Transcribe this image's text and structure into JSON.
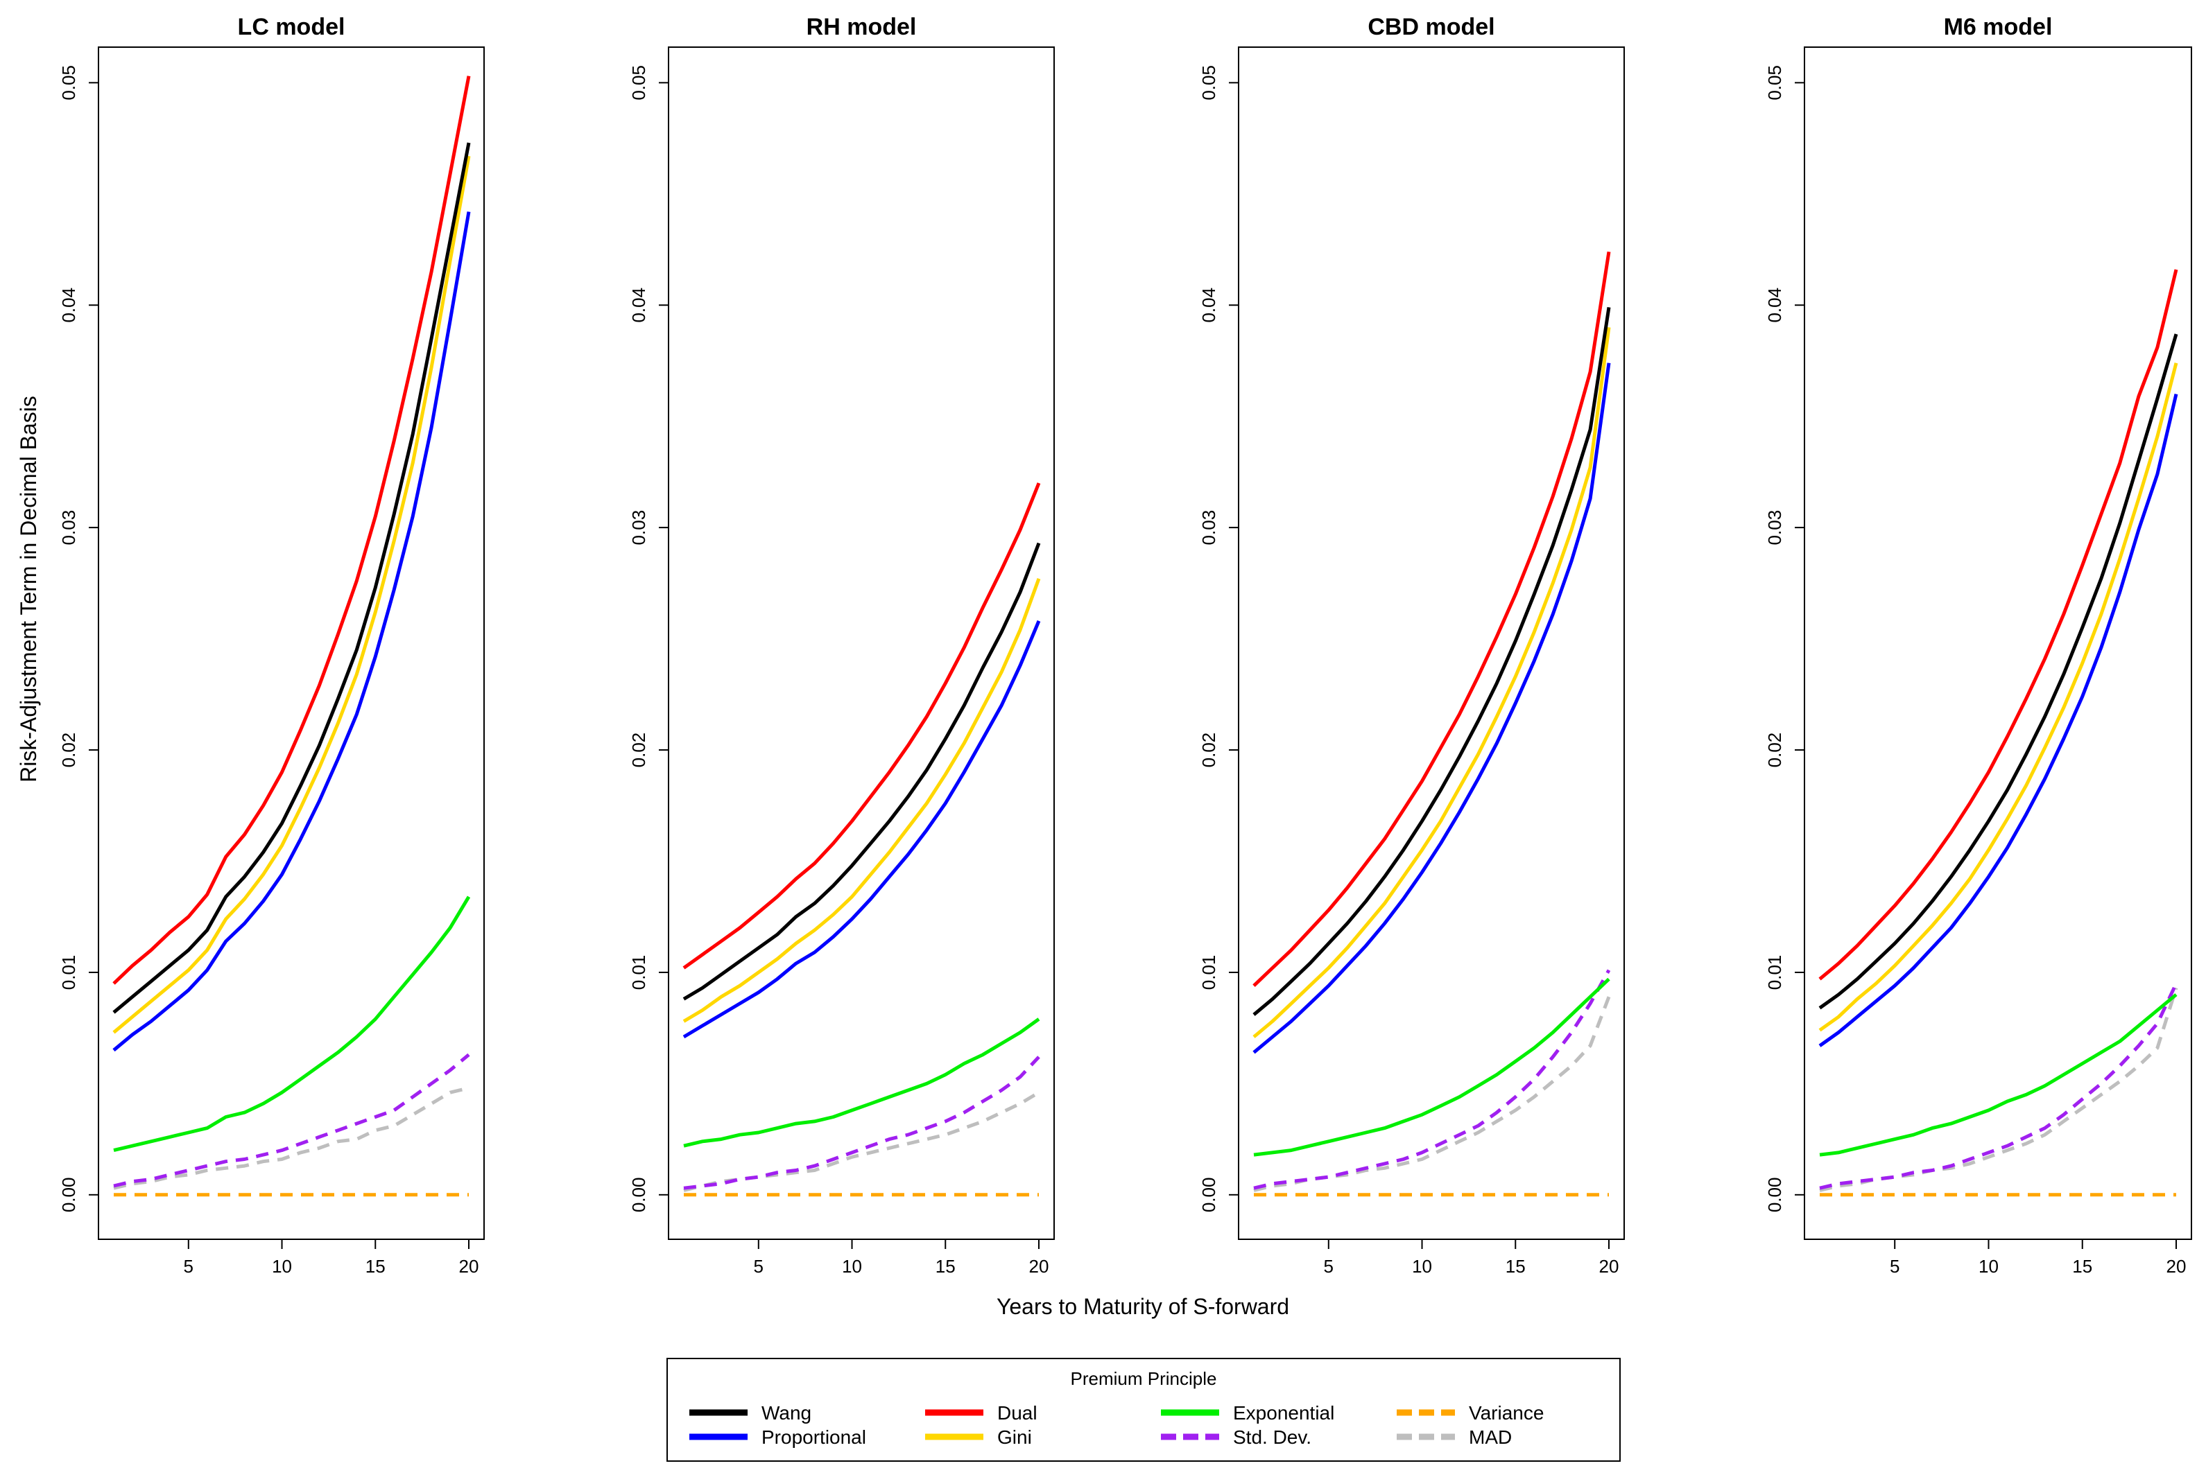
{
  "chart_data": {
    "type": "line",
    "ylabel": "Risk-Adjustment Term in Decimal Basis",
    "xlabel": "Years to Maturity of S-forward",
    "xlim": [
      1,
      20
    ],
    "ylim": [
      -0.002,
      0.0516
    ],
    "xticks": [
      5,
      10,
      15,
      20
    ],
    "yticks": [
      0.0,
      0.01,
      0.02,
      0.03,
      0.04,
      0.05
    ],
    "ytick_labels": [
      "0.00",
      "0.01",
      "0.02",
      "0.03",
      "0.04",
      "0.05"
    ],
    "x": [
      1,
      2,
      3,
      4,
      5,
      6,
      7,
      8,
      9,
      10,
      11,
      12,
      13,
      14,
      15,
      16,
      17,
      18,
      19,
      20
    ],
    "legend": {
      "title": "Premium Principle",
      "placement": "bottom-center",
      "entries": [
        {
          "name": "Wang",
          "color": "#000000",
          "dashed": false
        },
        {
          "name": "Proportional",
          "color": "#0000FF",
          "dashed": false
        },
        {
          "name": "Dual",
          "color": "#FF0000",
          "dashed": false
        },
        {
          "name": "Gini",
          "color": "#FFD700",
          "dashed": false
        },
        {
          "name": "Exponential",
          "color": "#00EE00",
          "dashed": false
        },
        {
          "name": "Std. Dev.",
          "color": "#A020F0",
          "dashed": true
        },
        {
          "name": "Variance",
          "color": "#FFA500",
          "dashed": true
        },
        {
          "name": "MAD",
          "color": "#BEBEBE",
          "dashed": true
        }
      ]
    },
    "panels": [
      {
        "title": "LC model",
        "series": [
          {
            "name": "MAD",
            "values": [
              0.0003,
              0.0005,
              0.0006,
              0.0008,
              0.0009,
              0.0011,
              0.0012,
              0.0013,
              0.0015,
              0.0016,
              0.0019,
              0.0021,
              0.0024,
              0.0025,
              0.0029,
              0.0031,
              0.0036,
              0.0041,
              0.0046,
              0.0048
            ]
          },
          {
            "name": "Std. Dev.",
            "values": [
              0.0004,
              0.0006,
              0.0007,
              0.0009,
              0.0011,
              0.0013,
              0.0015,
              0.0016,
              0.0018,
              0.002,
              0.0023,
              0.0026,
              0.0029,
              0.0032,
              0.0035,
              0.0038,
              0.0044,
              0.005,
              0.0056,
              0.0063
            ]
          },
          {
            "name": "Variance",
            "values": [
              0.0,
              0.0,
              0.0,
              0.0,
              0.0,
              0.0,
              0.0,
              0.0,
              0.0,
              0.0,
              0.0,
              0.0,
              0.0,
              0.0,
              0.0,
              0.0,
              0.0,
              0.0,
              0.0,
              0.0
            ]
          },
          {
            "name": "Exponential",
            "values": [
              0.002,
              0.0022,
              0.0024,
              0.0026,
              0.0028,
              0.003,
              0.0035,
              0.0037,
              0.0041,
              0.0046,
              0.0052,
              0.0058,
              0.0064,
              0.0071,
              0.0079,
              0.0089,
              0.0099,
              0.0109,
              0.012,
              0.0134
            ]
          },
          {
            "name": "Proportional",
            "values": [
              0.0065,
              0.0072,
              0.0078,
              0.0085,
              0.0092,
              0.0101,
              0.0114,
              0.0122,
              0.0132,
              0.0144,
              0.016,
              0.0177,
              0.0196,
              0.0216,
              0.0242,
              0.0272,
              0.0305,
              0.0345,
              0.0393,
              0.0442
            ]
          },
          {
            "name": "Gini",
            "values": [
              0.0073,
              0.008,
              0.0087,
              0.0094,
              0.0101,
              0.011,
              0.0124,
              0.0133,
              0.0144,
              0.0157,
              0.0174,
              0.0192,
              0.0212,
              0.0234,
              0.0262,
              0.0294,
              0.0329,
              0.0372,
              0.042,
              0.0467
            ]
          },
          {
            "name": "Wang",
            "values": [
              0.0082,
              0.0089,
              0.0096,
              0.0103,
              0.011,
              0.0119,
              0.0134,
              0.0143,
              0.0154,
              0.0167,
              0.0184,
              0.0202,
              0.0223,
              0.0245,
              0.0273,
              0.0306,
              0.0342,
              0.0385,
              0.0429,
              0.0473
            ]
          },
          {
            "name": "Dual",
            "values": [
              0.0095,
              0.0103,
              0.011,
              0.0118,
              0.0125,
              0.0135,
              0.0152,
              0.0162,
              0.0175,
              0.019,
              0.0209,
              0.0229,
              0.0252,
              0.0276,
              0.0305,
              0.0339,
              0.0376,
              0.0415,
              0.0459,
              0.0503
            ]
          }
        ]
      },
      {
        "title": "RH model",
        "series": [
          {
            "name": "MAD",
            "values": [
              0.0002,
              0.0004,
              0.0006,
              0.0007,
              0.0008,
              0.0009,
              0.001,
              0.0011,
              0.0014,
              0.0017,
              0.0019,
              0.0021,
              0.0023,
              0.0025,
              0.0027,
              0.003,
              0.0033,
              0.0037,
              0.0041,
              0.0046
            ]
          },
          {
            "name": "Std. Dev.",
            "values": [
              0.0003,
              0.0004,
              0.0005,
              0.0007,
              0.0008,
              0.001,
              0.0011,
              0.0013,
              0.0016,
              0.0019,
              0.0022,
              0.0025,
              0.0027,
              0.003,
              0.0033,
              0.0037,
              0.0042,
              0.0047,
              0.0053,
              0.0062
            ]
          },
          {
            "name": "Variance",
            "values": [
              0.0,
              0.0,
              0.0,
              0.0,
              0.0,
              0.0,
              0.0,
              0.0,
              0.0,
              0.0,
              0.0,
              0.0,
              0.0,
              0.0,
              0.0,
              0.0,
              0.0,
              0.0,
              0.0,
              0.0
            ]
          },
          {
            "name": "Exponential",
            "values": [
              0.0022,
              0.0024,
              0.0025,
              0.0027,
              0.0028,
              0.003,
              0.0032,
              0.0033,
              0.0035,
              0.0038,
              0.0041,
              0.0044,
              0.0047,
              0.005,
              0.0054,
              0.0059,
              0.0063,
              0.0068,
              0.0073,
              0.0079
            ]
          },
          {
            "name": "Proportional",
            "values": [
              0.0071,
              0.0076,
              0.0081,
              0.0086,
              0.0091,
              0.0097,
              0.0104,
              0.0109,
              0.0116,
              0.0124,
              0.0133,
              0.0143,
              0.0153,
              0.0164,
              0.0176,
              0.019,
              0.0205,
              0.022,
              0.0238,
              0.0258
            ]
          },
          {
            "name": "Gini",
            "values": [
              0.0078,
              0.0083,
              0.0089,
              0.0094,
              0.01,
              0.0106,
              0.0113,
              0.0119,
              0.0126,
              0.0134,
              0.0144,
              0.0154,
              0.0165,
              0.0176,
              0.0189,
              0.0203,
              0.0219,
              0.0235,
              0.0254,
              0.0277
            ]
          },
          {
            "name": "Wang",
            "values": [
              0.0088,
              0.0093,
              0.0099,
              0.0105,
              0.0111,
              0.0117,
              0.0125,
              0.0131,
              0.0139,
              0.0148,
              0.0158,
              0.0168,
              0.0179,
              0.0191,
              0.0205,
              0.022,
              0.0237,
              0.0253,
              0.0271,
              0.0293
            ]
          },
          {
            "name": "Dual",
            "values": [
              0.0102,
              0.0108,
              0.0114,
              0.012,
              0.0127,
              0.0134,
              0.0142,
              0.0149,
              0.0158,
              0.0168,
              0.0179,
              0.019,
              0.0202,
              0.0215,
              0.023,
              0.0246,
              0.0264,
              0.0281,
              0.0299,
              0.032
            ]
          }
        ]
      },
      {
        "title": "CBD model",
        "series": [
          {
            "name": "MAD",
            "values": [
              0.0002,
              0.0004,
              0.0005,
              0.0007,
              0.0008,
              0.0009,
              0.0011,
              0.0012,
              0.0014,
              0.0016,
              0.002,
              0.0024,
              0.0028,
              0.0033,
              0.0038,
              0.0044,
              0.0051,
              0.0058,
              0.0067,
              0.0089
            ]
          },
          {
            "name": "Std. Dev.",
            "values": [
              0.0003,
              0.0005,
              0.0006,
              0.0007,
              0.0008,
              0.001,
              0.0012,
              0.0014,
              0.0016,
              0.0019,
              0.0023,
              0.0027,
              0.0031,
              0.0037,
              0.0044,
              0.0052,
              0.0062,
              0.0073,
              0.0086,
              0.0101
            ]
          },
          {
            "name": "Variance",
            "values": [
              0.0,
              0.0,
              0.0,
              0.0,
              0.0,
              0.0,
              0.0,
              0.0,
              0.0,
              0.0,
              0.0,
              0.0,
              0.0,
              0.0,
              0.0,
              0.0,
              0.0,
              0.0,
              0.0,
              0.0
            ]
          },
          {
            "name": "Exponential",
            "values": [
              0.0018,
              0.0019,
              0.002,
              0.0022,
              0.0024,
              0.0026,
              0.0028,
              0.003,
              0.0033,
              0.0036,
              0.004,
              0.0044,
              0.0049,
              0.0054,
              0.006,
              0.0066,
              0.0073,
              0.0081,
              0.0089,
              0.0097
            ]
          },
          {
            "name": "Proportional",
            "values": [
              0.0064,
              0.0071,
              0.0078,
              0.0086,
              0.0094,
              0.0103,
              0.0112,
              0.0122,
              0.0133,
              0.0145,
              0.0158,
              0.0172,
              0.0187,
              0.0203,
              0.0221,
              0.024,
              0.0261,
              0.0285,
              0.0313,
              0.0374
            ]
          },
          {
            "name": "Gini",
            "values": [
              0.0071,
              0.0078,
              0.0086,
              0.0094,
              0.0102,
              0.0111,
              0.0121,
              0.0131,
              0.0143,
              0.0155,
              0.0168,
              0.0183,
              0.0198,
              0.0215,
              0.0233,
              0.0253,
              0.0275,
              0.0299,
              0.0327,
              0.039
            ]
          },
          {
            "name": "Wang",
            "values": [
              0.0081,
              0.0088,
              0.0096,
              0.0104,
              0.0113,
              0.0122,
              0.0132,
              0.0143,
              0.0155,
              0.0168,
              0.0182,
              0.0197,
              0.0213,
              0.023,
              0.0249,
              0.027,
              0.0292,
              0.0317,
              0.0344,
              0.0399
            ]
          },
          {
            "name": "Dual",
            "values": [
              0.0094,
              0.0102,
              0.011,
              0.0119,
              0.0128,
              0.0138,
              0.0149,
              0.016,
              0.0173,
              0.0186,
              0.0201,
              0.0216,
              0.0233,
              0.0251,
              0.027,
              0.0291,
              0.0314,
              0.034,
              0.037,
              0.0424
            ]
          }
        ]
      },
      {
        "title": "M6 model",
        "series": [
          {
            "name": "MAD",
            "values": [
              0.0002,
              0.0004,
              0.0005,
              0.0007,
              0.0008,
              0.0009,
              0.0011,
              0.0012,
              0.0014,
              0.0017,
              0.002,
              0.0023,
              0.0027,
              0.0033,
              0.0039,
              0.0045,
              0.0051,
              0.0058,
              0.0066,
              0.0093
            ]
          },
          {
            "name": "Std. Dev.",
            "values": [
              0.0003,
              0.0005,
              0.0006,
              0.0007,
              0.0008,
              0.001,
              0.0011,
              0.0013,
              0.0016,
              0.0019,
              0.0022,
              0.0026,
              0.003,
              0.0036,
              0.0043,
              0.005,
              0.0058,
              0.0067,
              0.0077,
              0.0095
            ]
          },
          {
            "name": "Variance",
            "values": [
              0.0,
              0.0,
              0.0,
              0.0,
              0.0,
              0.0,
              0.0,
              0.0,
              0.0,
              0.0,
              0.0,
              0.0,
              0.0,
              0.0,
              0.0,
              0.0,
              0.0,
              0.0,
              0.0,
              0.0
            ]
          },
          {
            "name": "Exponential",
            "values": [
              0.0018,
              0.0019,
              0.0021,
              0.0023,
              0.0025,
              0.0027,
              0.003,
              0.0032,
              0.0035,
              0.0038,
              0.0042,
              0.0045,
              0.0049,
              0.0054,
              0.0059,
              0.0064,
              0.0069,
              0.0076,
              0.0083,
              0.009
            ]
          },
          {
            "name": "Proportional",
            "values": [
              0.0067,
              0.0073,
              0.008,
              0.0087,
              0.0094,
              0.0102,
              0.0111,
              0.012,
              0.0131,
              0.0143,
              0.0156,
              0.0171,
              0.0187,
              0.0205,
              0.0224,
              0.0246,
              0.0271,
              0.0299,
              0.0324,
              0.036
            ]
          },
          {
            "name": "Gini",
            "values": [
              0.0074,
              0.008,
              0.0088,
              0.0095,
              0.0103,
              0.0112,
              0.0121,
              0.0131,
              0.0142,
              0.0155,
              0.0169,
              0.0184,
              0.0201,
              0.0219,
              0.0239,
              0.0261,
              0.0286,
              0.0313,
              0.0341,
              0.0374
            ]
          },
          {
            "name": "Wang",
            "values": [
              0.0084,
              0.009,
              0.0097,
              0.0105,
              0.0113,
              0.0122,
              0.0132,
              0.0143,
              0.0155,
              0.0168,
              0.0182,
              0.0198,
              0.0215,
              0.0234,
              0.0255,
              0.0277,
              0.0302,
              0.033,
              0.0358,
              0.0387
            ]
          },
          {
            "name": "Dual",
            "values": [
              0.0097,
              0.0104,
              0.0112,
              0.0121,
              0.013,
              0.014,
              0.0151,
              0.0163,
              0.0176,
              0.019,
              0.0206,
              0.0223,
              0.0241,
              0.0261,
              0.0283,
              0.0306,
              0.0329,
              0.0359,
              0.0381,
              0.0416
            ]
          }
        ]
      }
    ]
  }
}
